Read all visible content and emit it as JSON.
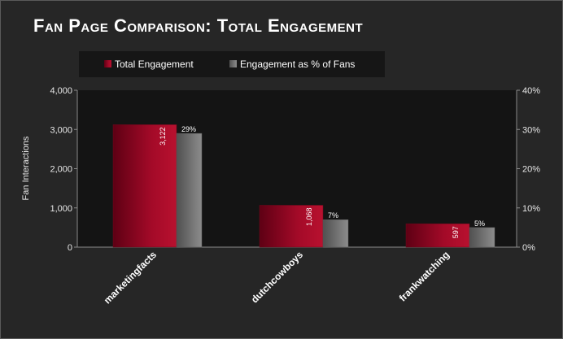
{
  "chart_data": {
    "type": "bar",
    "title": "Fan Page Comparison: Total Engagement",
    "categories": [
      "marketingfacts",
      "dutchcowboys",
      "frankwatching"
    ],
    "series": [
      {
        "name": "Total Engagement",
        "values": [
          3122,
          1068,
          597
        ],
        "labels": [
          "3,122",
          "1,068",
          "597"
        ],
        "axis": "left"
      },
      {
        "name": "Engagement as % of Fans",
        "values": [
          29,
          7,
          5
        ],
        "labels": [
          "29%",
          "7%",
          "5%"
        ],
        "axis": "right"
      }
    ],
    "ylabel": "Fan Interactions",
    "ylim": [
      0,
      4000
    ],
    "yticks": [
      "0",
      "1,000",
      "2,000",
      "3,000",
      "4,000"
    ],
    "y2lim": [
      0,
      40
    ],
    "y2ticks": [
      "0%",
      "10%",
      "20%",
      "30%",
      "40%"
    ],
    "legend": "top",
    "grid": false
  },
  "colors": {
    "total_engagement": "#b0102c",
    "engagement_pct": "#7a7a7a",
    "plot_background": "#141414",
    "panel_background": "#262626"
  }
}
